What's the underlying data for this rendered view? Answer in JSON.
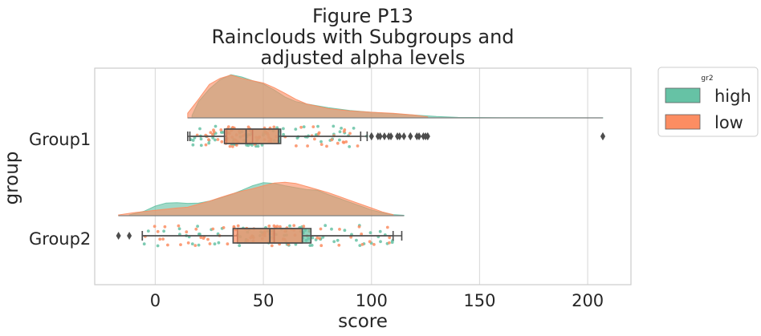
{
  "chart_data": {
    "type": "raincloud",
    "title_lines": [
      "Figure P13",
      "Rainclouds with Subgroups and",
      "adjusted alpha levels"
    ],
    "xlabel": "score",
    "ylabel": "group",
    "xlim": [
      -28,
      220
    ],
    "xticks": [
      0,
      50,
      100,
      150,
      200
    ],
    "grid": "x",
    "legend": {
      "title": "gr2",
      "position": "outside-top-right",
      "entries": [
        {
          "name": "high",
          "color": "#66c2a5"
        },
        {
          "name": "low",
          "color": "#fc8d62"
        }
      ]
    },
    "groups": [
      {
        "name": "Group1",
        "subgroups": [
          {
            "name": "high",
            "color": "#66c2a5",
            "density": [
              [
                17,
                0.05
              ],
              [
                20,
                0.35
              ],
              [
                25,
                0.62
              ],
              [
                30,
                0.82
              ],
              [
                35,
                0.93
              ],
              [
                40,
                0.88
              ],
              [
                45,
                0.8
              ],
              [
                50,
                0.73
              ],
              [
                55,
                0.6
              ],
              [
                60,
                0.45
              ],
              [
                65,
                0.35
              ],
              [
                70,
                0.3
              ],
              [
                80,
                0.22
              ],
              [
                90,
                0.16
              ],
              [
                100,
                0.12
              ],
              [
                110,
                0.09
              ],
              [
                120,
                0.06
              ],
              [
                130,
                0.03
              ],
              [
                140,
                0.01
              ],
              [
                160,
                0.003
              ],
              [
                200,
                0.002
              ],
              [
                207,
                0.001
              ]
            ]
          },
          {
            "name": "low",
            "color": "#fc8d62",
            "density": [
              [
                15,
                0.1
              ],
              [
                20,
                0.4
              ],
              [
                25,
                0.72
              ],
              [
                30,
                0.85
              ],
              [
                35,
                0.92
              ],
              [
                40,
                0.85
              ],
              [
                45,
                0.8
              ],
              [
                50,
                0.75
              ],
              [
                55,
                0.65
              ],
              [
                60,
                0.53
              ],
              [
                65,
                0.4
              ],
              [
                70,
                0.3
              ],
              [
                80,
                0.2
              ],
              [
                90,
                0.15
              ],
              [
                100,
                0.12
              ],
              [
                110,
                0.1
              ],
              [
                120,
                0.06
              ],
              [
                126,
                0.02
              ]
            ]
          }
        ],
        "boxes": [
          {
            "subgroup": "high",
            "min": 16,
            "q1": 33,
            "median": 45,
            "q3": 58,
            "max": 98,
            "outliers": [
              100,
              103,
              106,
              109,
              112,
              115,
              118,
              121,
              124,
              125,
              126,
              207
            ]
          },
          {
            "subgroup": "low",
            "min": 15,
            "q1": 32,
            "median": 42,
            "q3": 57,
            "max": 95,
            "outliers": [
              100,
              104,
              108,
              113,
              118,
              122,
              126,
              207
            ]
          }
        ]
      },
      {
        "name": "Group2",
        "subgroups": [
          {
            "name": "high",
            "color": "#66c2a5",
            "density": [
              [
                -12,
                0.02
              ],
              [
                -5,
                0.12
              ],
              [
                0,
                0.25
              ],
              [
                5,
                0.33
              ],
              [
                10,
                0.34
              ],
              [
                15,
                0.32
              ],
              [
                20,
                0.33
              ],
              [
                25,
                0.38
              ],
              [
                30,
                0.46
              ],
              [
                35,
                0.55
              ],
              [
                40,
                0.66
              ],
              [
                45,
                0.78
              ],
              [
                50,
                0.86
              ],
              [
                55,
                0.84
              ],
              [
                60,
                0.78
              ],
              [
                65,
                0.73
              ],
              [
                70,
                0.68
              ],
              [
                75,
                0.66
              ],
              [
                80,
                0.55
              ],
              [
                85,
                0.45
              ],
              [
                90,
                0.35
              ],
              [
                95,
                0.25
              ],
              [
                100,
                0.15
              ],
              [
                105,
                0.08
              ],
              [
                110,
                0.03
              ],
              [
                115,
                0.01
              ]
            ]
          },
          {
            "name": "low",
            "color": "#fc8d62",
            "density": [
              [
                -17,
                0.02
              ],
              [
                -10,
                0.08
              ],
              [
                0,
                0.14
              ],
              [
                10,
                0.2
              ],
              [
                15,
                0.22
              ],
              [
                20,
                0.3
              ],
              [
                25,
                0.38
              ],
              [
                30,
                0.47
              ],
              [
                35,
                0.56
              ],
              [
                40,
                0.64
              ],
              [
                45,
                0.7
              ],
              [
                50,
                0.78
              ],
              [
                55,
                0.85
              ],
              [
                60,
                0.87
              ],
              [
                65,
                0.84
              ],
              [
                70,
                0.76
              ],
              [
                75,
                0.68
              ],
              [
                80,
                0.6
              ],
              [
                85,
                0.5
              ],
              [
                90,
                0.4
              ],
              [
                95,
                0.3
              ],
              [
                100,
                0.2
              ],
              [
                105,
                0.1
              ],
              [
                110,
                0.03
              ]
            ]
          }
        ],
        "boxes": [
          {
            "subgroup": "high",
            "min": -6,
            "q1": 38,
            "median": 55,
            "q3": 72,
            "max": 114,
            "outliers": []
          },
          {
            "subgroup": "low",
            "min": -6,
            "q1": 36,
            "median": 53,
            "q3": 68,
            "max": 110,
            "outliers": [
              -12,
              -17
            ]
          }
        ]
      }
    ]
  }
}
